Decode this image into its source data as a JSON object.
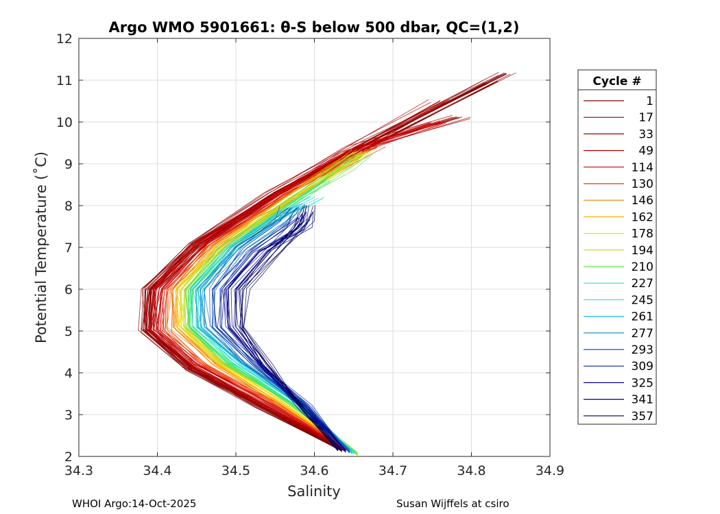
{
  "chart_data": {
    "type": "line",
    "title": "Argo WMO 5901661: θ-S below 500 dbar,  QC=(1,2)",
    "xlabel": "Salinity",
    "ylabel": "Potential Temperature (˚C)",
    "xlim": [
      34.3,
      34.9
    ],
    "ylim": [
      2,
      12
    ],
    "xticks": [
      "34.3",
      "34.4",
      "34.5",
      "34.6",
      "34.7",
      "34.8",
      "34.9"
    ],
    "yticks": [
      "2",
      "3",
      "4",
      "5",
      "6",
      "7",
      "8",
      "9",
      "10",
      "11",
      "12"
    ],
    "grid": true,
    "legend_title": "Cycle #",
    "legend_position": "outside-right",
    "series": [
      {
        "name": "1",
        "color": "#800000",
        "values": [
          [
            34.635,
            2.15
          ],
          [
            34.53,
            3.2
          ],
          [
            34.44,
            4.1
          ],
          [
            34.385,
            5.0
          ],
          [
            34.39,
            6.0
          ],
          [
            34.45,
            7.1
          ],
          [
            34.55,
            8.3
          ],
          [
            34.68,
            9.6
          ],
          [
            34.845,
            11.15
          ]
        ]
      },
      {
        "name": "17",
        "color": "#8a0000",
        "values": [
          [
            34.64,
            2.15
          ],
          [
            34.535,
            3.2
          ],
          [
            34.445,
            4.1
          ],
          [
            34.39,
            5.0
          ],
          [
            34.395,
            6.0
          ],
          [
            34.455,
            7.1
          ],
          [
            34.555,
            8.3
          ],
          [
            34.68,
            9.6
          ],
          [
            34.82,
            10.95
          ]
        ]
      },
      {
        "name": "33",
        "color": "#9f0000",
        "values": [
          [
            34.638,
            2.18
          ],
          [
            34.53,
            3.25
          ],
          [
            34.44,
            4.15
          ],
          [
            34.385,
            5.05
          ],
          [
            34.388,
            6.0
          ],
          [
            34.45,
            7.05
          ],
          [
            34.55,
            8.25
          ],
          [
            34.66,
            9.4
          ],
          [
            34.788,
            10.12
          ]
        ]
      },
      {
        "name": "49",
        "color": "#b00000",
        "values": [
          [
            34.64,
            2.2
          ],
          [
            34.535,
            3.25
          ],
          [
            34.445,
            4.15
          ],
          [
            34.392,
            5.0
          ],
          [
            34.395,
            6.0
          ],
          [
            34.455,
            7.1
          ],
          [
            34.55,
            8.3
          ],
          [
            34.65,
            9.35
          ],
          [
            34.76,
            10.5
          ]
        ]
      },
      {
        "name": "114",
        "color": "#cc0000",
        "values": [
          [
            34.642,
            2.18
          ],
          [
            34.54,
            3.3
          ],
          [
            34.45,
            4.2
          ],
          [
            34.4,
            5.0
          ],
          [
            34.405,
            6.0
          ],
          [
            34.46,
            7.1
          ],
          [
            34.555,
            8.25
          ],
          [
            34.65,
            9.3
          ],
          [
            34.76,
            10.0
          ]
        ]
      },
      {
        "name": "130",
        "color": "#e83000",
        "values": [
          [
            34.645,
            2.15
          ],
          [
            34.545,
            3.3
          ],
          [
            34.46,
            4.2
          ],
          [
            34.41,
            5.0
          ],
          [
            34.412,
            6.0
          ],
          [
            34.465,
            7.05
          ],
          [
            34.56,
            8.2
          ],
          [
            34.645,
            9.1
          ],
          [
            34.68,
            9.4
          ]
        ]
      },
      {
        "name": "146",
        "color": "#f07800",
        "values": [
          [
            34.648,
            2.15
          ],
          [
            34.55,
            3.3
          ],
          [
            34.47,
            4.2
          ],
          [
            34.42,
            5.1
          ],
          [
            34.42,
            6.0
          ],
          [
            34.47,
            7.0
          ],
          [
            34.56,
            8.15
          ],
          [
            34.63,
            9.0
          ],
          [
            34.655,
            9.25
          ]
        ]
      },
      {
        "name": "162",
        "color": "#ffb000",
        "values": [
          [
            34.65,
            2.12
          ],
          [
            34.555,
            3.3
          ],
          [
            34.475,
            4.25
          ],
          [
            34.425,
            5.1
          ],
          [
            34.425,
            6.0
          ],
          [
            34.475,
            7.0
          ],
          [
            34.57,
            8.2
          ],
          [
            34.64,
            9.05
          ],
          [
            34.66,
            9.3
          ]
        ]
      },
      {
        "name": "178",
        "color": "#f0e000",
        "values": [
          [
            34.652,
            2.1
          ],
          [
            34.56,
            3.3
          ],
          [
            34.48,
            4.25
          ],
          [
            34.43,
            5.1
          ],
          [
            34.43,
            6.0
          ],
          [
            34.48,
            7.0
          ],
          [
            34.57,
            8.15
          ],
          [
            34.64,
            9.0
          ],
          [
            34.66,
            9.25
          ]
        ]
      },
      {
        "name": "194",
        "color": "#b0e030",
        "values": [
          [
            34.655,
            2.08
          ],
          [
            34.565,
            3.3
          ],
          [
            34.485,
            4.25
          ],
          [
            34.435,
            5.1
          ],
          [
            34.435,
            6.0
          ],
          [
            34.485,
            7.0
          ],
          [
            34.575,
            8.15
          ],
          [
            34.64,
            9.0
          ],
          [
            34.665,
            9.3
          ]
        ]
      },
      {
        "name": "210",
        "color": "#60e040",
        "values": [
          [
            34.655,
            2.05
          ],
          [
            34.57,
            3.3
          ],
          [
            34.49,
            4.25
          ],
          [
            34.44,
            5.1
          ],
          [
            34.44,
            6.0
          ],
          [
            34.49,
            7.0
          ],
          [
            34.575,
            8.1
          ],
          [
            34.635,
            8.9
          ],
          [
            34.66,
            9.2
          ]
        ]
      },
      {
        "name": "227",
        "color": "#30e890",
        "values": [
          [
            34.652,
            2.08
          ],
          [
            34.57,
            3.3
          ],
          [
            34.495,
            4.25
          ],
          [
            34.445,
            5.1
          ],
          [
            34.445,
            6.0
          ],
          [
            34.495,
            7.0
          ],
          [
            34.575,
            8.05
          ],
          [
            34.62,
            8.6
          ]
        ]
      },
      {
        "name": "245",
        "color": "#30e8d0",
        "values": [
          [
            34.65,
            2.08
          ],
          [
            34.575,
            3.3
          ],
          [
            34.5,
            4.25
          ],
          [
            34.45,
            5.1
          ],
          [
            34.45,
            6.0
          ],
          [
            34.5,
            7.0
          ],
          [
            34.57,
            7.9
          ],
          [
            34.6,
            8.2
          ]
        ]
      },
      {
        "name": "261",
        "color": "#20b8e8",
        "values": [
          [
            34.648,
            2.1
          ],
          [
            34.58,
            3.3
          ],
          [
            34.505,
            4.25
          ],
          [
            34.455,
            5.1
          ],
          [
            34.455,
            6.0
          ],
          [
            34.5,
            7.0
          ],
          [
            34.565,
            7.8
          ],
          [
            34.59,
            8.0
          ]
        ]
      },
      {
        "name": "277",
        "color": "#1080c0",
        "values": [
          [
            34.645,
            2.12
          ],
          [
            34.585,
            3.3
          ],
          [
            34.51,
            4.25
          ],
          [
            34.46,
            5.1
          ],
          [
            34.46,
            6.0
          ],
          [
            34.505,
            7.0
          ],
          [
            34.56,
            7.7
          ],
          [
            34.58,
            7.95
          ]
        ]
      },
      {
        "name": "293",
        "color": "#1050b8",
        "values": [
          [
            34.645,
            2.12
          ],
          [
            34.585,
            3.2
          ],
          [
            34.52,
            4.2
          ],
          [
            34.47,
            5.1
          ],
          [
            34.47,
            6.0
          ],
          [
            34.51,
            7.0
          ],
          [
            34.555,
            7.6
          ],
          [
            34.57,
            7.95
          ]
        ]
      },
      {
        "name": "309",
        "color": "#0828a0",
        "values": [
          [
            34.64,
            2.12
          ],
          [
            34.59,
            3.2
          ],
          [
            34.525,
            4.2
          ],
          [
            34.48,
            5.1
          ],
          [
            34.48,
            6.0
          ],
          [
            34.52,
            6.9
          ],
          [
            34.56,
            7.4
          ],
          [
            34.58,
            7.7
          ]
        ]
      },
      {
        "name": "325",
        "color": "#000090",
        "values": [
          [
            34.64,
            2.15
          ],
          [
            34.59,
            3.15
          ],
          [
            34.53,
            4.2
          ],
          [
            34.49,
            5.1
          ],
          [
            34.49,
            6.0
          ],
          [
            34.53,
            6.9
          ],
          [
            34.575,
            7.4
          ],
          [
            34.59,
            7.85
          ]
        ]
      },
      {
        "name": "341",
        "color": "#000078",
        "values": [
          [
            34.635,
            2.15
          ],
          [
            34.59,
            3.1
          ],
          [
            34.535,
            4.2
          ],
          [
            34.5,
            5.1
          ],
          [
            34.5,
            6.0
          ],
          [
            34.54,
            6.9
          ],
          [
            34.58,
            7.5
          ],
          [
            34.585,
            7.8
          ]
        ]
      },
      {
        "name": "357",
        "color": "#00005a",
        "values": [
          [
            34.63,
            2.15
          ],
          [
            34.585,
            3.1
          ],
          [
            34.54,
            4.2
          ],
          [
            34.505,
            5.1
          ],
          [
            34.51,
            6.0
          ],
          [
            34.55,
            6.9
          ],
          [
            34.585,
            7.6
          ],
          [
            34.59,
            8.0
          ]
        ]
      }
    ]
  },
  "footer": {
    "left": "WHOI Argo:14-Oct-2025",
    "right": "Susan Wijffels at csiro"
  }
}
